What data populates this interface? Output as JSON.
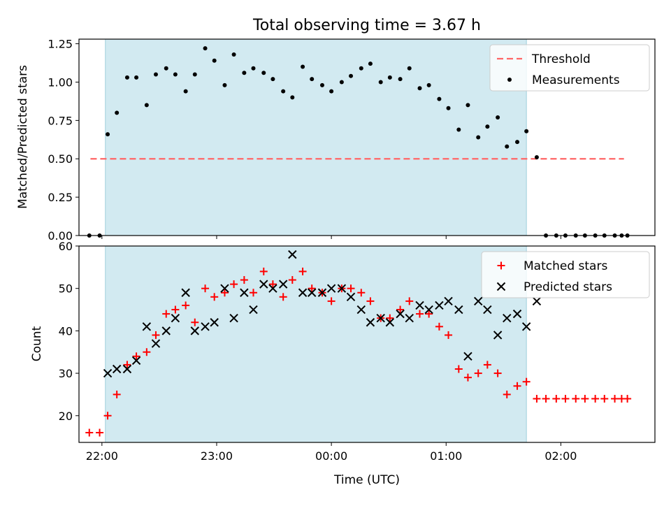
{
  "chart_data": {
    "type": "scatter",
    "title": "Total observing time = 3.67 h",
    "xlabel": "Time (UTC)",
    "x_tick_labels": [
      "22:00",
      "23:00",
      "00:00",
      "01:00",
      "02:00"
    ],
    "x_tick_hours": [
      0,
      1,
      2,
      3,
      4
    ],
    "x_range_hours_from_22": [
      -0.2,
      4.82
    ],
    "observing_window_hours_from_22": [
      0.03,
      3.7
    ],
    "window_color": "#add8e6",
    "top": {
      "ylabel": "Matched/Predicted stars",
      "ylim": [
        0,
        1.28
      ],
      "yticks": [
        "0.00",
        "0.25",
        "0.50",
        "0.75",
        "1.00",
        "1.25"
      ],
      "threshold": {
        "name": "Threshold",
        "y": 0.5,
        "x_range": [
          -0.1,
          4.55
        ],
        "color": "#ff6666"
      },
      "legend": [
        "Threshold",
        "Measurements"
      ],
      "legend_position": "upper right",
      "series": [
        {
          "name": "Measurements",
          "color": "#000000",
          "x": [
            -0.11,
            -0.02,
            0.05,
            0.13,
            0.22,
            0.3,
            0.39,
            0.47,
            0.56,
            0.64,
            0.73,
            0.81,
            0.9,
            0.98,
            1.07,
            1.15,
            1.24,
            1.32,
            1.41,
            1.49,
            1.58,
            1.66,
            1.75,
            1.83,
            1.92,
            2.0,
            2.09,
            2.17,
            2.26,
            2.34,
            2.43,
            2.51,
            2.6,
            2.68,
            2.77,
            2.85,
            2.94,
            3.02,
            3.11,
            3.19,
            3.28,
            3.36,
            3.45,
            3.53,
            3.62,
            3.7,
            3.79,
            3.87,
            3.96,
            4.04,
            4.13,
            4.21,
            4.3,
            4.38,
            4.47,
            4.53,
            4.58
          ],
          "y": [
            0.0,
            0.0,
            0.66,
            0.8,
            1.03,
            1.03,
            0.85,
            1.05,
            1.09,
            1.05,
            0.94,
            1.05,
            1.22,
            1.14,
            0.98,
            1.18,
            1.06,
            1.09,
            1.06,
            1.02,
            0.94,
            0.9,
            1.1,
            1.02,
            0.98,
            0.94,
            1.0,
            1.04,
            1.09,
            1.12,
            1.0,
            1.03,
            1.02,
            1.09,
            0.96,
            0.98,
            0.89,
            0.83,
            0.69,
            0.85,
            0.64,
            0.71,
            0.77,
            0.58,
            0.61,
            0.68,
            0.51,
            0.0,
            0.0,
            0.0,
            0.0,
            0.0,
            0.0,
            0.0,
            0.0,
            0.0,
            0.0
          ]
        }
      ]
    },
    "bottom": {
      "ylabel": "Count",
      "ylim": [
        13.7,
        60
      ],
      "yticks": [
        "20",
        "30",
        "40",
        "50",
        "60"
      ],
      "legend": [
        "Matched stars",
        "Predicted stars"
      ],
      "legend_position": "upper right",
      "series": [
        {
          "name": "Matched stars",
          "marker": "+",
          "color": "#ff0000",
          "x": [
            -0.11,
            -0.02,
            0.05,
            0.13,
            0.22,
            0.3,
            0.39,
            0.47,
            0.56,
            0.64,
            0.73,
            0.81,
            0.9,
            0.98,
            1.07,
            1.15,
            1.24,
            1.32,
            1.41,
            1.49,
            1.58,
            1.66,
            1.75,
            1.83,
            1.92,
            2.0,
            2.09,
            2.17,
            2.26,
            2.34,
            2.43,
            2.51,
            2.6,
            2.68,
            2.77,
            2.85,
            2.94,
            3.02,
            3.11,
            3.19,
            3.28,
            3.36,
            3.45,
            3.53,
            3.62,
            3.7,
            3.79,
            3.87,
            3.96,
            4.04,
            4.13,
            4.21,
            4.3,
            4.38,
            4.47,
            4.53,
            4.58
          ],
          "y": [
            16,
            16,
            20,
            25,
            32,
            34,
            35,
            39,
            44,
            45,
            46,
            42,
            50,
            48,
            49,
            51,
            52,
            49,
            54,
            51,
            48,
            52,
            54,
            50,
            49,
            47,
            50,
            50,
            49,
            47,
            43,
            43,
            45,
            47,
            44,
            44,
            41,
            39,
            31,
            29,
            30,
            32,
            30,
            25,
            27,
            28,
            24,
            24,
            24,
            24,
            24,
            24,
            24,
            24,
            24,
            24,
            24
          ]
        },
        {
          "name": "Predicted stars",
          "marker": "x",
          "color": "#000000",
          "x": [
            0.05,
            0.13,
            0.22,
            0.3,
            0.39,
            0.47,
            0.56,
            0.64,
            0.73,
            0.81,
            0.9,
            0.98,
            1.07,
            1.15,
            1.24,
            1.32,
            1.41,
            1.49,
            1.58,
            1.66,
            1.75,
            1.83,
            1.92,
            2.0,
            2.09,
            2.17,
            2.26,
            2.34,
            2.43,
            2.51,
            2.6,
            2.68,
            2.77,
            2.85,
            2.94,
            3.02,
            3.11,
            3.19,
            3.28,
            3.36,
            3.45,
            3.53,
            3.62,
            3.7,
            3.79
          ],
          "y": [
            30,
            31,
            31,
            33,
            41,
            37,
            40,
            43,
            49,
            40,
            41,
            42,
            50,
            43,
            49,
            45,
            51,
            50,
            51,
            58,
            49,
            49,
            49,
            50,
            50,
            48,
            45,
            42,
            43,
            42,
            44,
            43,
            46,
            45,
            46,
            47,
            45,
            34,
            47,
            45,
            39,
            43,
            44,
            41,
            47
          ]
        }
      ]
    }
  }
}
